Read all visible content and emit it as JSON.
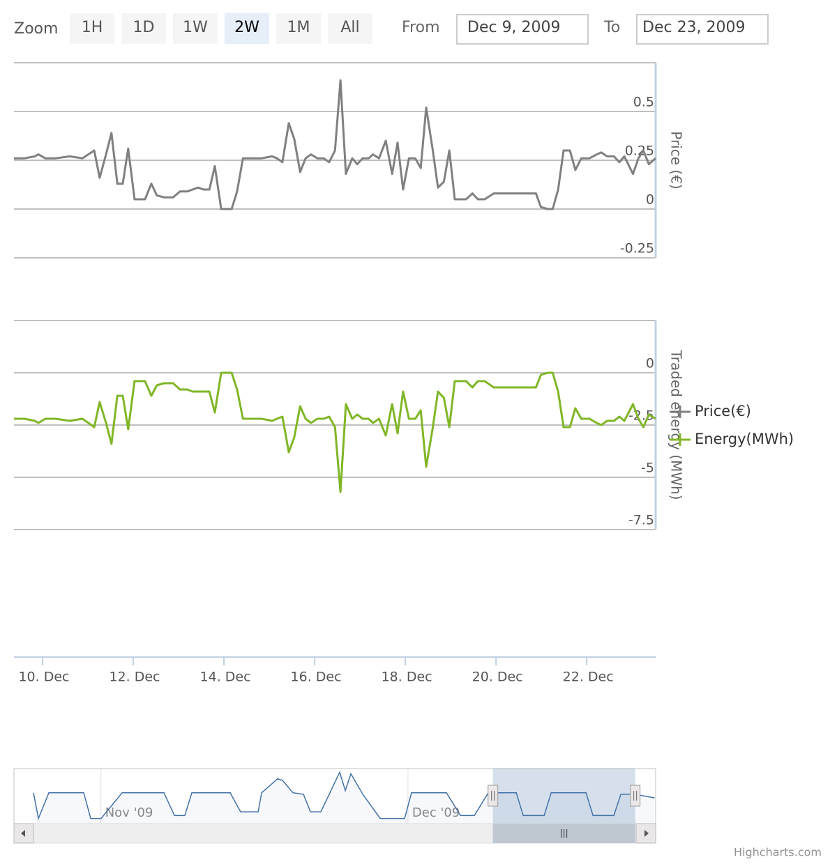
{
  "range_selector": {
    "zoom_label": "Zoom",
    "buttons": [
      "1H",
      "1D",
      "1W",
      "2W",
      "1M",
      "All"
    ],
    "selected": 3,
    "from_label": "From",
    "from": "Dec 9, 2009",
    "to_label": "To",
    "to": "Dec 23, 2009"
  },
  "credits": "Highcharts.com",
  "chart_data": [
    {
      "type": "line",
      "y_title": "Price (€)",
      "ylim": [
        -0.25,
        0.75
      ],
      "yticks": [
        -0.25,
        0,
        0.25,
        0.5
      ],
      "grid": true,
      "xlim": [
        9.37,
        23.52
      ],
      "x": [
        9.37,
        9.6,
        9.83,
        9.91,
        10.06,
        10.29,
        10.6,
        10.88,
        11.14,
        11.26,
        11.4,
        11.52,
        11.65,
        11.77,
        11.89,
        12.03,
        12.26,
        12.4,
        12.52,
        12.68,
        12.88,
        13.03,
        13.19,
        13.31,
        13.43,
        13.55,
        13.68,
        13.8,
        13.94,
        14.17,
        14.29,
        14.42,
        14.6,
        14.83,
        15.06,
        15.17,
        15.29,
        15.43,
        15.55,
        15.68,
        15.8,
        15.92,
        16.06,
        16.2,
        16.32,
        16.45,
        16.57,
        16.69,
        16.83,
        16.94,
        17.06,
        17.19,
        17.29,
        17.42,
        17.57,
        17.71,
        17.83,
        17.95,
        18.08,
        18.22,
        18.34,
        18.46,
        18.6,
        18.72,
        18.85,
        18.97,
        19.09,
        19.34,
        19.48,
        19.6,
        19.75,
        19.95,
        20.88,
        20.99,
        21.14,
        21.25,
        21.37,
        21.49,
        21.63,
        21.75,
        21.88,
        22.06,
        22.22,
        22.32,
        22.45,
        22.6,
        22.72,
        22.83,
        23.02,
        23.14,
        23.25,
        23.37,
        23.52
      ],
      "series": [
        {
          "name": "Price(€)",
          "color": "#808080",
          "values": [
            0.26,
            0.26,
            0.27,
            0.28,
            0.26,
            0.26,
            0.27,
            0.26,
            0.3,
            0.16,
            0.28,
            0.39,
            0.13,
            0.13,
            0.31,
            0.05,
            0.05,
            0.13,
            0.07,
            0.06,
            0.06,
            0.09,
            0.09,
            0.1,
            0.11,
            0.1,
            0.1,
            0.22,
            0,
            0,
            0.09,
            0.26,
            0.26,
            0.26,
            0.27,
            0.26,
            0.24,
            0.44,
            0.36,
            0.19,
            0.26,
            0.28,
            0.26,
            0.26,
            0.24,
            0.3,
            0.66,
            0.18,
            0.26,
            0.23,
            0.26,
            0.26,
            0.28,
            0.26,
            0.35,
            0.18,
            0.34,
            0.1,
            0.26,
            0.26,
            0.21,
            0.52,
            0.31,
            0.11,
            0.14,
            0.3,
            0.05,
            0.05,
            0.08,
            0.05,
            0.05,
            0.08,
            0.08,
            0.01,
            0,
            0,
            0.1,
            0.3,
            0.3,
            0.2,
            0.26,
            0.26,
            0.28,
            0.29,
            0.27,
            0.27,
            0.24,
            0.27,
            0.18,
            0.26,
            0.3,
            0.23,
            0.26
          ]
        }
      ]
    },
    {
      "type": "line",
      "y_title": "Traded energy (MWh)",
      "ylim": [
        -7.5,
        2.5
      ],
      "yticks": [
        -7.5,
        -5,
        -2.5,
        0
      ],
      "grid": true,
      "xlim": [
        9.37,
        23.52
      ],
      "xticks": [
        {
          "value": 10,
          "label": "10. Dec"
        },
        {
          "value": 12,
          "label": "12. Dec"
        },
        {
          "value": 14,
          "label": "14. Dec"
        },
        {
          "value": 16,
          "label": "16. Dec"
        },
        {
          "value": 18,
          "label": "18. Dec"
        },
        {
          "value": 20,
          "label": "20. Dec"
        },
        {
          "value": 22,
          "label": "22. Dec"
        }
      ],
      "x": [
        9.37,
        9.6,
        9.83,
        9.91,
        10.06,
        10.29,
        10.6,
        10.88,
        11.14,
        11.26,
        11.4,
        11.52,
        11.65,
        11.77,
        11.89,
        12.03,
        12.26,
        12.4,
        12.52,
        12.68,
        12.88,
        13.03,
        13.19,
        13.31,
        13.43,
        13.55,
        13.68,
        13.8,
        13.94,
        14.17,
        14.29,
        14.42,
        14.6,
        14.83,
        15.06,
        15.17,
        15.29,
        15.43,
        15.55,
        15.68,
        15.8,
        15.92,
        16.06,
        16.2,
        16.32,
        16.45,
        16.57,
        16.69,
        16.83,
        16.94,
        17.06,
        17.19,
        17.29,
        17.42,
        17.57,
        17.71,
        17.83,
        17.95,
        18.08,
        18.22,
        18.34,
        18.46,
        18.6,
        18.72,
        18.85,
        18.97,
        19.09,
        19.34,
        19.48,
        19.6,
        19.75,
        19.95,
        20.88,
        20.99,
        21.14,
        21.25,
        21.37,
        21.49,
        21.63,
        21.75,
        21.88,
        22.06,
        22.22,
        22.32,
        22.45,
        22.6,
        22.72,
        22.83,
        23.02,
        23.14,
        23.25,
        23.37,
        23.52
      ],
      "series": [
        {
          "name": "Energy(MWh)",
          "color": "#80b626",
          "values": [
            -2.2,
            -2.2,
            -2.3,
            -2.4,
            -2.2,
            -2.2,
            -2.3,
            -2.2,
            -2.6,
            -1.4,
            -2.4,
            -3.4,
            -1.1,
            -1.1,
            -2.7,
            -0.4,
            -0.4,
            -1.1,
            -0.6,
            -0.5,
            -0.5,
            -0.8,
            -0.8,
            -0.9,
            -0.9,
            -0.9,
            -0.9,
            -1.9,
            0,
            0,
            -0.8,
            -2.2,
            -2.2,
            -2.2,
            -2.3,
            -2.2,
            -2.1,
            -3.8,
            -3.1,
            -1.6,
            -2.2,
            -2.4,
            -2.2,
            -2.2,
            -2.1,
            -2.6,
            -5.7,
            -1.5,
            -2.2,
            -2,
            -2.2,
            -2.2,
            -2.4,
            -2.2,
            -3,
            -1.5,
            -2.9,
            -0.9,
            -2.2,
            -2.2,
            -1.8,
            -4.5,
            -2.7,
            -0.9,
            -1.2,
            -2.6,
            -0.4,
            -0.4,
            -0.7,
            -0.4,
            -0.4,
            -0.7,
            -0.7,
            -0.1,
            0,
            0,
            -0.9,
            -2.6,
            -2.6,
            -1.7,
            -2.2,
            -2.2,
            -2.4,
            -2.5,
            -2.3,
            -2.3,
            -2.1,
            -2.3,
            -1.5,
            -2.2,
            -2.6,
            -2,
            -2.2
          ]
        }
      ]
    },
    {
      "type": "area",
      "xlim": [
        296.5,
        359.2
      ],
      "ylim": [
        -0.05,
        0.7
      ],
      "color": "#4572a7",
      "xticks": [
        {
          "value": 305,
          "label": "Nov '09"
        },
        {
          "value": 335,
          "label": "Dec '09"
        }
      ],
      "selection": [
        343.3,
        357.2
      ],
      "x": [
        298.41,
        298.89,
        299.91,
        303.32,
        304.0,
        305.02,
        307.07,
        311.16,
        312.18,
        313.2,
        313.88,
        317.63,
        318.65,
        320.36,
        320.7,
        322.27,
        322.74,
        323.77,
        324.79,
        325.47,
        326.49,
        328.33,
        328.88,
        329.42,
        330.58,
        332.29,
        334.67,
        335.35,
        338.76,
        340.13,
        341.49,
        342.85,
        345.58,
        346.26,
        348.31,
        348.99,
        352.4,
        353.08,
        355.12,
        355.8,
        357.17,
        359.1
      ],
      "values": [
        0.37,
        0.02,
        0.37,
        0.37,
        0.02,
        0.02,
        0.37,
        0.37,
        0.06,
        0.06,
        0.37,
        0.37,
        0.11,
        0.11,
        0.37,
        0.56,
        0.54,
        0.37,
        0.35,
        0.11,
        0.11,
        0.65,
        0.4,
        0.63,
        0.35,
        0.02,
        0.02,
        0.37,
        0.37,
        0.06,
        0.06,
        0.37,
        0.37,
        0.06,
        0.06,
        0.37,
        0.37,
        0.06,
        0.06,
        0.35,
        0.35,
        0.3
      ]
    }
  ]
}
